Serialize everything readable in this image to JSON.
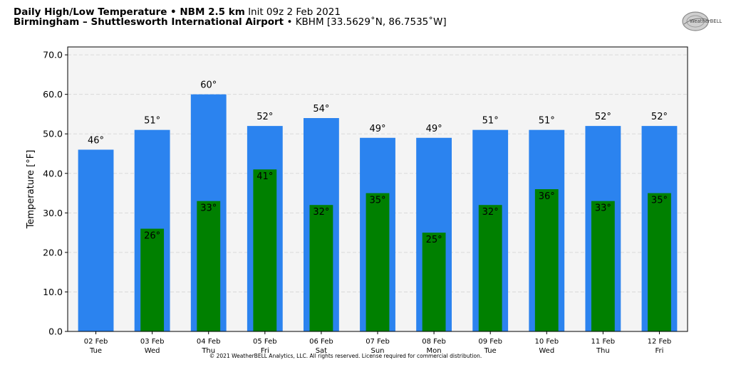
{
  "header": {
    "line1_bold": "Daily High/Low Temperature • NBM 2.5 km",
    "line1_normal": "Init 09z 2 Feb 2021",
    "line2_bold": "Birmingham – Shuttlesworth International Airport",
    "line2_normal": "• KBHM [33.5629˚N, 86.7535˚W]"
  },
  "logo": {
    "icon": "weatherbell-logo-icon",
    "text": "WeatherBELL"
  },
  "copyright": "© 2021 WeatherBELL Analytics, LLC. All rights reserved. License required for commercial distribution.",
  "colors": {
    "high": "#2b83ef",
    "low": "#008000",
    "plot_bg": "#f4f4f4",
    "grid": "#d9d9d9"
  },
  "chart_data": {
    "type": "bar",
    "title": "Daily High/Low Temperature • NBM 2.5 km",
    "ylabel": "Temperature [°F]",
    "xlabel": "",
    "ylim": [
      0,
      72
    ],
    "yticks": [
      "0.0",
      "10.0",
      "20.0",
      "30.0",
      "40.0",
      "50.0",
      "60.0",
      "70.0"
    ],
    "grid": true,
    "categories": [
      [
        "02 Feb",
        "Tue"
      ],
      [
        "03 Feb",
        "Wed"
      ],
      [
        "04 Feb",
        "Thu"
      ],
      [
        "05 Feb",
        "Fri"
      ],
      [
        "06 Feb",
        "Sat"
      ],
      [
        "07 Feb",
        "Sun"
      ],
      [
        "08 Feb",
        "Mon"
      ],
      [
        "09 Feb",
        "Tue"
      ],
      [
        "10 Feb",
        "Wed"
      ],
      [
        "11 Feb",
        "Thu"
      ],
      [
        "12 Feb",
        "Fri"
      ]
    ],
    "series": [
      {
        "values": [
          46,
          51,
          60,
          52,
          54,
          49,
          49,
          51,
          51,
          52,
          52
        ],
        "labels": [
          "46°",
          "51°",
          "60°",
          "52°",
          "54°",
          "49°",
          "49°",
          "51°",
          "51°",
          "52°",
          "52°"
        ]
      },
      {
        "values": [
          null,
          26,
          33,
          41,
          32,
          35,
          25,
          32,
          36,
          33,
          35
        ],
        "labels": [
          "",
          "26°",
          "33°",
          "41°",
          "32°",
          "35°",
          "25°",
          "32°",
          "36°",
          "33°",
          "35°"
        ]
      }
    ]
  }
}
